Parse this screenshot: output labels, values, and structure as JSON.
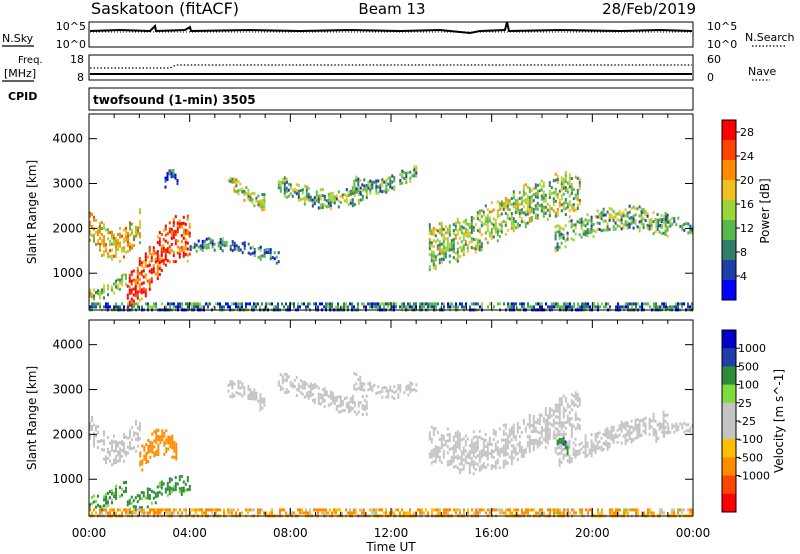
{
  "header": {
    "station": "Saskatoon (fitACF)",
    "beam": "Beam 13",
    "date": "28/Feb/2019"
  },
  "noise_panel": {
    "left_label": "N.Sky",
    "left_ticks": [
      "10^5",
      "10^0"
    ],
    "right_label": "N.Search",
    "right_ticks": [
      "10^5",
      "10^0"
    ]
  },
  "freq_panel": {
    "left_label_1": "Freq.",
    "left_label_2": "[MHz]",
    "left_ticks": [
      "18",
      "8"
    ],
    "right_label": "Nave",
    "right_ticks": [
      "60",
      "0"
    ]
  },
  "cpid_panel": {
    "label": "CPID",
    "text": "twofsound (1-min) 3505"
  },
  "colors": {
    "background": "#ffffff",
    "ground_scatter": "#c4c4c4",
    "power_scale": [
      "#0000ff",
      "#1f3ea6",
      "#2f7e6b",
      "#58b84b",
      "#9ad63a",
      "#f0c020",
      "#ff8c00",
      "#ff4500",
      "#ff0000"
    ],
    "velocity_scale": [
      "#ff0000",
      "#ff4500",
      "#ff8c00",
      "#ffbf00",
      "#c4c4c4",
      "#c4c4c4",
      "#7fdc3a",
      "#2f8a3a",
      "#1f3ea6",
      "#0000c8"
    ]
  },
  "chart_data": [
    {
      "type": "heatmap",
      "title": "Power",
      "xlabel": "Time UT",
      "ylabel": "Slant Range [km]",
      "xlim": [
        "00:00",
        "00:00"
      ],
      "x_ticks": [
        "00:00",
        "04:00",
        "08:00",
        "12:00",
        "16:00",
        "20:00",
        "00:00"
      ],
      "ylim": [
        180,
        4550
      ],
      "y_ticks": [
        1000,
        2000,
        3000,
        4000
      ],
      "colorbar": {
        "label": "Power [dB]",
        "ticks": [
          "4",
          "8",
          "12",
          "16",
          "20",
          "24",
          "28"
        ],
        "range": [
          0,
          30
        ]
      },
      "echo_regions": [
        {
          "t": [
            0.0,
            2.0
          ],
          "range": [
            1450,
            2750
          ],
          "value": 18
        },
        {
          "t": [
            0.0,
            1.5
          ],
          "range": [
            500,
            1000
          ],
          "value": 14
        },
        {
          "t": [
            1.5,
            4.0
          ],
          "range": [
            250,
            2100
          ],
          "value": 26
        },
        {
          "t": [
            3.0,
            3.5
          ],
          "range": [
            2850,
            3300
          ],
          "value": 6
        },
        {
          "t": [
            4.0,
            7.5
          ],
          "range": [
            1250,
            1750
          ],
          "value": 8
        },
        {
          "t": [
            5.5,
            7.0
          ],
          "range": [
            2500,
            3150
          ],
          "value": 14
        },
        {
          "t": [
            7.5,
            11.0
          ],
          "range": [
            2550,
            3300
          ],
          "value": 12
        },
        {
          "t": [
            10.5,
            13.0
          ],
          "range": [
            2850,
            3450
          ],
          "value": 10
        },
        {
          "t": [
            13.5,
            19.5
          ],
          "range": [
            1350,
            3050
          ],
          "value": 14
        },
        {
          "t": [
            18.5,
            23.0
          ],
          "range": [
            1450,
            2400
          ],
          "value": 12
        },
        {
          "t": [
            22.5,
            24.0
          ],
          "range": [
            1800,
            2250
          ],
          "value": 10
        },
        {
          "t": [
            0.0,
            24.0
          ],
          "range": [
            180,
            350
          ],
          "value": 8
        }
      ]
    },
    {
      "type": "heatmap",
      "title": "Velocity",
      "xlabel": "Time UT",
      "ylabel": "Slant Range [km]",
      "xlim": [
        "00:00",
        "00:00"
      ],
      "x_ticks": [
        "00:00",
        "04:00",
        "08:00",
        "12:00",
        "16:00",
        "20:00",
        "00:00"
      ],
      "ylim": [
        180,
        4550
      ],
      "y_ticks": [
        1000,
        2000,
        3000,
        4000
      ],
      "colorbar": {
        "label": "Velocity [m s^-1]",
        "ticks": [
          "1000",
          "500",
          "100",
          "25",
          "-25",
          "-100",
          "-500",
          "-1000"
        ],
        "range": [
          -1000,
          1000
        ]
      },
      "echo_regions": [
        {
          "t": [
            0.0,
            2.0
          ],
          "range": [
            1450,
            2750
          ],
          "value": 0,
          "ground_scatter": true
        },
        {
          "t": [
            0.0,
            1.5
          ],
          "range": [
            400,
            1000
          ],
          "value": 150
        },
        {
          "t": [
            1.5,
            4.0
          ],
          "range": [
            300,
            1000
          ],
          "value": 200
        },
        {
          "t": [
            2.0,
            3.5
          ],
          "range": [
            1000,
            2000
          ],
          "value": -300
        },
        {
          "t": [
            5.5,
            7.0
          ],
          "range": [
            2500,
            3150
          ],
          "value": 0,
          "ground_scatter": true
        },
        {
          "t": [
            7.5,
            11.0
          ],
          "range": [
            2550,
            3300
          ],
          "value": 0,
          "ground_scatter": true
        },
        {
          "t": [
            10.5,
            13.0
          ],
          "range": [
            2850,
            3450
          ],
          "value": 0,
          "ground_scatter": true
        },
        {
          "t": [
            13.5,
            19.5
          ],
          "range": [
            1350,
            3050
          ],
          "value": 0,
          "ground_scatter": true
        },
        {
          "t": [
            18.5,
            23.0
          ],
          "range": [
            1450,
            2400
          ],
          "value": 0,
          "ground_scatter": true
        },
        {
          "t": [
            22.5,
            24.0
          ],
          "range": [
            1800,
            2250
          ],
          "value": 0,
          "ground_scatter": true
        },
        {
          "t": [
            18.5,
            19.0
          ],
          "range": [
            1550,
            1950
          ],
          "value": 400
        },
        {
          "t": [
            0.0,
            24.0
          ],
          "range": [
            180,
            350
          ],
          "value": -120
        }
      ]
    }
  ]
}
